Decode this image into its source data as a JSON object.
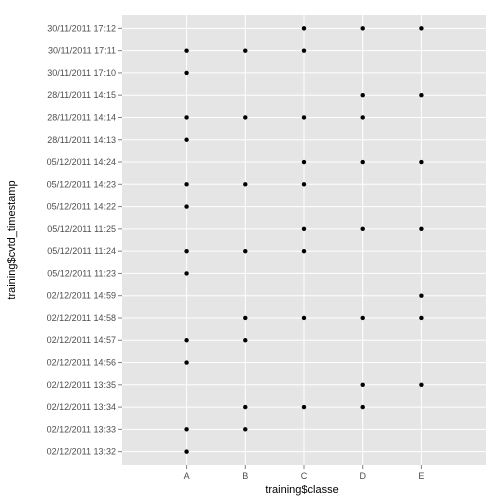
{
  "chart_data": {
    "type": "scatter",
    "xlabel": "training$classe",
    "ylabel": "training$cvtd_timestamp",
    "categories": [
      "A",
      "B",
      "C",
      "D",
      "E"
    ],
    "y_categories": [
      "02/12/2011 13:32",
      "02/12/2011 13:33",
      "02/12/2011 13:34",
      "02/12/2011 13:35",
      "02/12/2011 14:56",
      "02/12/2011 14:57",
      "02/12/2011 14:58",
      "02/12/2011 14:59",
      "05/12/2011 11:23",
      "05/12/2011 11:24",
      "05/12/2011 11:25",
      "05/12/2011 14:22",
      "05/12/2011 14:23",
      "05/12/2011 14:24",
      "28/11/2011 14:13",
      "28/11/2011 14:14",
      "28/11/2011 14:15",
      "30/11/2011 17:10",
      "30/11/2011 17:11",
      "30/11/2011 17:12"
    ],
    "points": [
      {
        "x": "C",
        "y": "30/11/2011 17:12"
      },
      {
        "x": "D",
        "y": "30/11/2011 17:12"
      },
      {
        "x": "E",
        "y": "30/11/2011 17:12"
      },
      {
        "x": "A",
        "y": "30/11/2011 17:11"
      },
      {
        "x": "B",
        "y": "30/11/2011 17:11"
      },
      {
        "x": "C",
        "y": "30/11/2011 17:11"
      },
      {
        "x": "A",
        "y": "30/11/2011 17:10"
      },
      {
        "x": "D",
        "y": "28/11/2011 14:15"
      },
      {
        "x": "E",
        "y": "28/11/2011 14:15"
      },
      {
        "x": "A",
        "y": "28/11/2011 14:14"
      },
      {
        "x": "B",
        "y": "28/11/2011 14:14"
      },
      {
        "x": "C",
        "y": "28/11/2011 14:14"
      },
      {
        "x": "D",
        "y": "28/11/2011 14:14"
      },
      {
        "x": "A",
        "y": "28/11/2011 14:13"
      },
      {
        "x": "C",
        "y": "05/12/2011 14:24"
      },
      {
        "x": "D",
        "y": "05/12/2011 14:24"
      },
      {
        "x": "E",
        "y": "05/12/2011 14:24"
      },
      {
        "x": "A",
        "y": "05/12/2011 14:23"
      },
      {
        "x": "B",
        "y": "05/12/2011 14:23"
      },
      {
        "x": "C",
        "y": "05/12/2011 14:23"
      },
      {
        "x": "A",
        "y": "05/12/2011 14:22"
      },
      {
        "x": "C",
        "y": "05/12/2011 11:25"
      },
      {
        "x": "D",
        "y": "05/12/2011 11:25"
      },
      {
        "x": "E",
        "y": "05/12/2011 11:25"
      },
      {
        "x": "A",
        "y": "05/12/2011 11:24"
      },
      {
        "x": "B",
        "y": "05/12/2011 11:24"
      },
      {
        "x": "C",
        "y": "05/12/2011 11:24"
      },
      {
        "x": "A",
        "y": "05/12/2011 11:23"
      },
      {
        "x": "E",
        "y": "02/12/2011 14:59"
      },
      {
        "x": "B",
        "y": "02/12/2011 14:58"
      },
      {
        "x": "C",
        "y": "02/12/2011 14:58"
      },
      {
        "x": "D",
        "y": "02/12/2011 14:58"
      },
      {
        "x": "E",
        "y": "02/12/2011 14:58"
      },
      {
        "x": "A",
        "y": "02/12/2011 14:57"
      },
      {
        "x": "B",
        "y": "02/12/2011 14:57"
      },
      {
        "x": "A",
        "y": "02/12/2011 14:56"
      },
      {
        "x": "D",
        "y": "02/12/2011 13:35"
      },
      {
        "x": "E",
        "y": "02/12/2011 13:35"
      },
      {
        "x": "B",
        "y": "02/12/2011 13:34"
      },
      {
        "x": "C",
        "y": "02/12/2011 13:34"
      },
      {
        "x": "D",
        "y": "02/12/2011 13:34"
      },
      {
        "x": "A",
        "y": "02/12/2011 13:33"
      },
      {
        "x": "B",
        "y": "02/12/2011 13:33"
      },
      {
        "x": "A",
        "y": "02/12/2011 13:32"
      }
    ],
    "grid": true,
    "colors": {
      "panel_background": "#e5e5e5",
      "grid_major": "#ffffff",
      "grid_minor": "#f2f2f2",
      "point": "#000000",
      "tick_label": "#4d4d4d",
      "axis_title": "#000000"
    }
  }
}
